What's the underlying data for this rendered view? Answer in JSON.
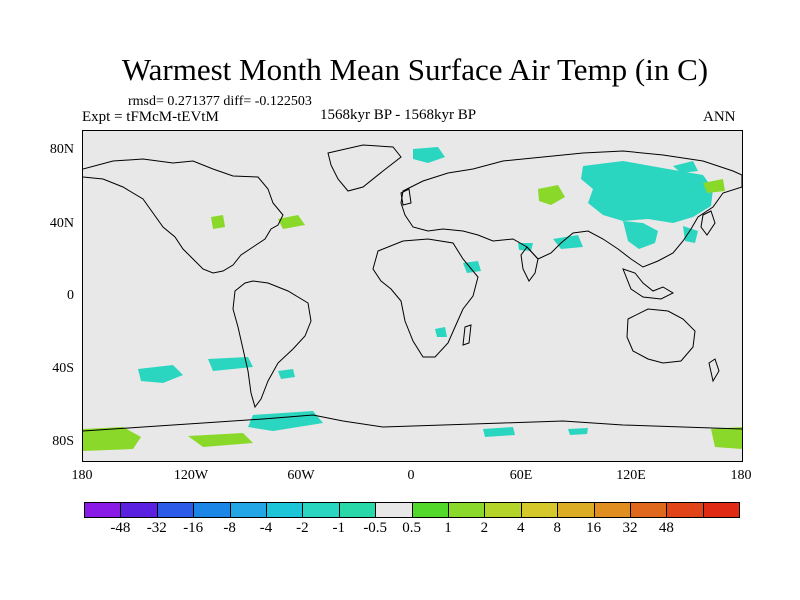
{
  "title": "Warmest Month Mean Surface Air Temp (in C)",
  "stats": "rmsd= 0.271377 diff= -0.122503",
  "experiment": "Expt = tFMcM-tEVtM",
  "period": "1568kyr BP - 1568kyr BP",
  "season": "ANN",
  "lat_labels": [
    "80N",
    "40N",
    "0",
    "40S",
    "80S"
  ],
  "lon_labels": [
    "180",
    "120W",
    "60W",
    "0",
    "60E",
    "120E",
    "180"
  ],
  "colorbar": {
    "colors": [
      "#8a1ae6",
      "#5a22e0",
      "#2c5be8",
      "#1c86e6",
      "#22a6e6",
      "#1cc6d8",
      "#2ad6c0",
      "#28d8a8",
      "#e8e8e8",
      "#52d82a",
      "#8ad82a",
      "#b4d42a",
      "#d4c82a",
      "#dcac22",
      "#e08e20",
      "#e0681c",
      "#e04418",
      "#e02a14"
    ],
    "labels": [
      "-48",
      "-32",
      "-16",
      "-8",
      "-4",
      "-2",
      "-1",
      "-0.5",
      "0.5",
      "1",
      "2",
      "4",
      "8",
      "16",
      "32",
      "48"
    ]
  },
  "anomaly_colors": {
    "cyan": "#2ad6c0",
    "green": "#8ad82a",
    "ocean_bg": "#e8e8e8"
  }
}
